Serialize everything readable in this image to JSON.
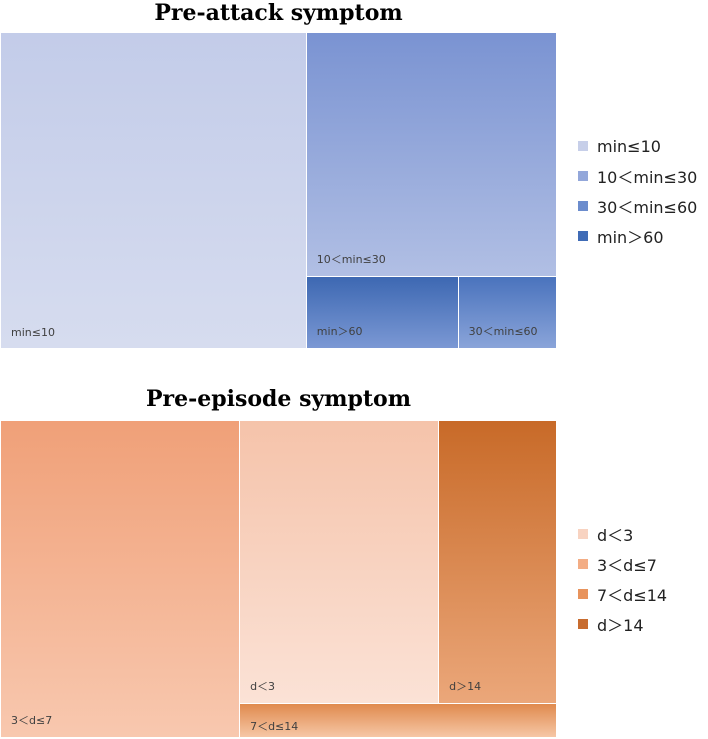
{
  "chart_data": [
    {
      "type": "treemap",
      "title": "Pre-attack symptom",
      "legend": {
        "position": "right",
        "entries": [
          {
            "label": "min≤10",
            "color": "#c7cfe9"
          },
          {
            "label": "10＜min≤30",
            "color": "#93a7da"
          },
          {
            "label": "30＜min≤60",
            "color": "#6b8ccd"
          },
          {
            "label": "min＞60",
            "color": "#3f6bb6"
          }
        ]
      },
      "nodes": [
        {
          "label": "min≤10",
          "value": 55,
          "color_top": "#c3cce9",
          "color_bottom": "#d6dcef"
        },
        {
          "label": "10＜min≤30",
          "value": 32,
          "color_top": "#7a93d2",
          "color_bottom": "#b1bfe4"
        },
        {
          "label": "min＞60",
          "value": 8,
          "color_top": "#3d68b2",
          "color_bottom": "#7b98d4"
        },
        {
          "label": "30＜min≤60",
          "value": 5,
          "color_top": "#4a73bd",
          "color_bottom": "#8aa4d9"
        }
      ]
    },
    {
      "type": "treemap",
      "title": "Pre-episode symptom",
      "legend": {
        "position": "right",
        "entries": [
          {
            "label": "d＜3",
            "color": "#f8d3c1"
          },
          {
            "label": "3＜d≤7",
            "color": "#f3ad85"
          },
          {
            "label": "7＜d≤14",
            "color": "#e8935c"
          },
          {
            "label": "d＞14",
            "color": "#c86c2f"
          }
        ]
      },
      "nodes": [
        {
          "label": "3＜d≤7",
          "value": 43,
          "color_top": "#f0a078",
          "color_bottom": "#f8c8af"
        },
        {
          "label": "d＜3",
          "value": 33,
          "color_top": "#f5c3aa",
          "color_bottom": "#fbe2d6"
        },
        {
          "label": "d＞14",
          "value": 17,
          "color_top": "#c86a28",
          "color_bottom": "#eba77a"
        },
        {
          "label": "7＜d≤14",
          "value": 7,
          "color_top": "#e08a4e",
          "color_bottom": "#f6c7a6"
        }
      ]
    }
  ]
}
